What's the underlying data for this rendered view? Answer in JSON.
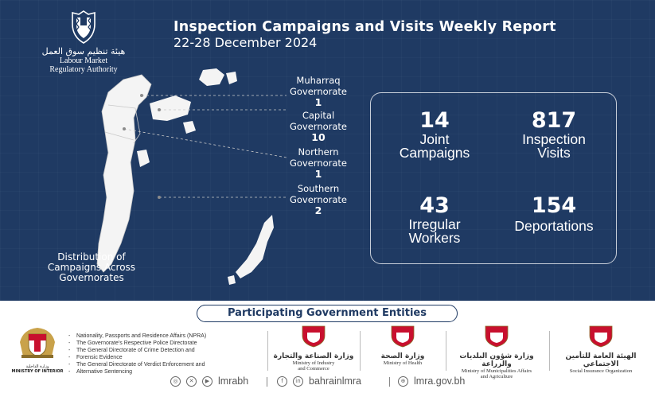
{
  "header": {
    "logo_arabic": "هيئة تنظيم سوق العمل",
    "logo_line1": "Labour Market",
    "logo_line2": "Regulatory Authority",
    "title": "Inspection Campaigns and Visits Weekly Report",
    "subtitle": "22-28 December 2024"
  },
  "governorates": [
    {
      "name_line1": "Muharraq",
      "name_line2": "Governorate",
      "count": "1"
    },
    {
      "name_line1": "Capital",
      "name_line2": "Governorate",
      "count": "10"
    },
    {
      "name_line1": "Northern",
      "name_line2": "Governorate",
      "count": "1"
    },
    {
      "name_line1": "Southern",
      "name_line2": "Governorate",
      "count": "2"
    }
  ],
  "map_caption": {
    "line1": "Distribution of",
    "line2": "Campaigns Across",
    "line3": "Governorates"
  },
  "stats": [
    {
      "value": "14",
      "label_line1": "Joint",
      "label_line2": "Campaigns"
    },
    {
      "value": "817",
      "label_line1": "Inspection",
      "label_line2": "Visits"
    },
    {
      "value": "43",
      "label_line1": "Irregular",
      "label_line2": "Workers"
    },
    {
      "value": "154",
      "label_line1": "Deportations",
      "label_line2": ""
    }
  ],
  "entities": {
    "heading": "Participating Government Entities",
    "moi_label": "MINISTRY OF INTERIOR",
    "moi_arabic": "وزارة الداخلية",
    "moi_items": [
      "Nationality, Passports and Residence Affairs (NPRA)",
      "The Governorate's Respective Police Directorate",
      "The General Directorate of Crime Detection and",
      "Forensic Evidence",
      "The General Directorate of Verdict Enforcement and",
      "Alternative Sentencing"
    ],
    "ministries": [
      {
        "arabic": "وزارة الصناعة والتجارة",
        "line1": "Ministry of Industry",
        "line2": "and Commerce"
      },
      {
        "arabic": "وزارة الصحة",
        "line1": "Ministry of Health",
        "line2": ""
      },
      {
        "arabic": "وزارة شؤون البلديات والزراعة",
        "line1": "Ministry of Municipalities Affairs",
        "line2": "and Agriculture"
      },
      {
        "arabic": "الهيئة العامة للتأمين الاجتماعي",
        "line1": "Social Insurance Organization",
        "line2": ""
      }
    ]
  },
  "footer": {
    "handle1": "lmrabh",
    "handle2": "bahrainlmra",
    "website": "lmra.gov.bh"
  },
  "colors": {
    "navy": "#1f3a63",
    "map_fill": "#f4f4f4",
    "emblem_red": "#c8102e"
  }
}
